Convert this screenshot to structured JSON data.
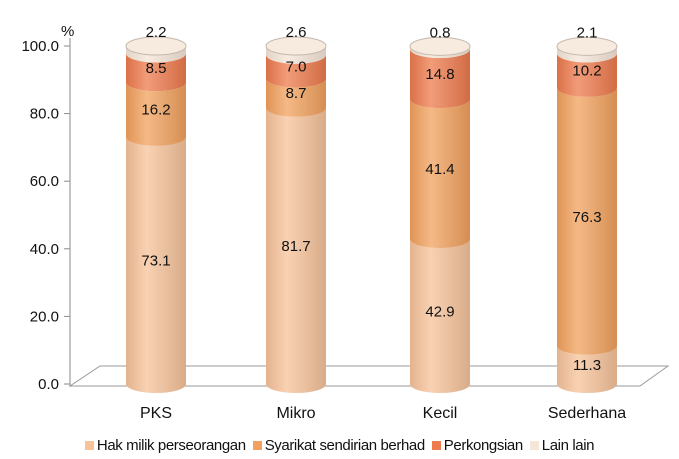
{
  "chart_data": {
    "type": "bar",
    "stacked": true,
    "style": "3d-cylinder",
    "y_unit_label": "%",
    "ylim": [
      0,
      100
    ],
    "yticks": [
      "0.0",
      "20.0",
      "40.0",
      "60.0",
      "80.0",
      "100.0"
    ],
    "ytick_values": [
      0,
      20,
      40,
      60,
      80,
      100
    ],
    "categories": [
      "PKS",
      "Mikro",
      "Kecil",
      "Sederhana"
    ],
    "series": [
      {
        "name": "Hak milik perseorangan",
        "color": "#f7c39a",
        "values": [
          73.1,
          81.7,
          42.9,
          11.3
        ],
        "labels": [
          "73.1",
          "81.7",
          "42.9",
          "11.3"
        ]
      },
      {
        "name": "Syarikat sendirian berhad",
        "color": "#f2a15e",
        "values": [
          16.2,
          8.7,
          41.4,
          76.3
        ],
        "labels": [
          "16.2",
          "8.7",
          "41.4",
          "76.3"
        ]
      },
      {
        "name": "Perkongsian",
        "color": "#ed7b4d",
        "values": [
          8.5,
          7.0,
          14.8,
          10.2
        ],
        "labels": [
          "8.5",
          "7.0",
          "14.8",
          "10.2"
        ]
      },
      {
        "name": "Lain lain",
        "color": "#f5e6d8",
        "values": [
          2.2,
          2.6,
          0.8,
          2.1
        ],
        "labels": [
          "2.2",
          "2.6",
          "0.8",
          "2.1"
        ]
      }
    ],
    "legend_position": "bottom",
    "grid": false
  }
}
